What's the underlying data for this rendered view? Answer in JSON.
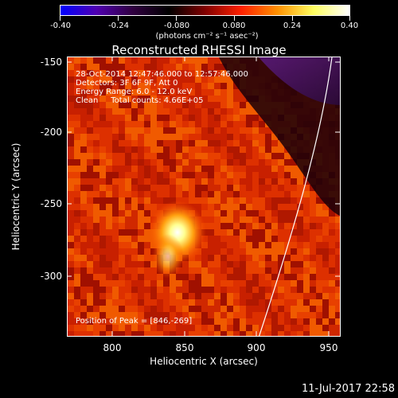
{
  "colorbar": {
    "ticks": [
      "-0.40",
      "-0.24",
      "-0.080",
      "0.080",
      "0.24",
      "0.40"
    ],
    "units": "(photons cm⁻² s⁻¹ asec⁻²)",
    "colors": [
      "#0000ff",
      "#5000b0",
      "#300040",
      "#000000",
      "#800000",
      "#ff2000",
      "#ff9000",
      "#ffff60",
      "#ffffff"
    ]
  },
  "title": "Reconstructed RHESSI Image",
  "info": {
    "line1": "28-Oct-2014 12:47:46.000 to 12:57:46.000",
    "line2": "Detectors: 3F 6F 9F, Att 0",
    "line3": "Energy Range: 6.0 - 12.0 keV",
    "line4": "Clean     Total counts: 4.66E+05",
    "peak": "Position of Peak = [846,-269]"
  },
  "axes": {
    "xlabel": "Heliocentric X (arcsec)",
    "ylabel": "Heliocentric Y (arcsec)",
    "xticks": [
      "800",
      "850",
      "900",
      "950"
    ],
    "yticks": [
      "-150",
      "-200",
      "-250",
      "-300"
    ]
  },
  "timestamp": "11-Jul-2017 22:58"
}
